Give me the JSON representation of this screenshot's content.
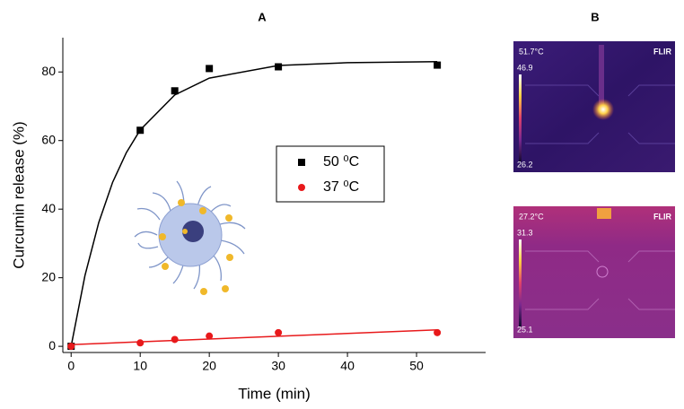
{
  "chart_data": {
    "type": "scatter",
    "title": "A",
    "xlabel": "Time (min)",
    "ylabel": "Curcumin release (%)",
    "xlim": [
      -1.2,
      60
    ],
    "xticks": [
      0,
      10,
      20,
      30,
      40,
      50
    ],
    "ylim": [
      -1.8,
      90
    ],
    "yticks": [
      0,
      20,
      40,
      60,
      80
    ],
    "series": [
      {
        "name": "50 ⁰C",
        "color": "#000000",
        "marker": "square",
        "x": [
          0,
          10,
          15,
          20,
          30,
          53
        ],
        "values": [
          0,
          63,
          74.5,
          81,
          81.5,
          82
        ],
        "fit": {
          "x": [
            0,
            2,
            4,
            6,
            8,
            10,
            15,
            20,
            30,
            40,
            53
          ],
          "values": [
            0,
            20.6,
            36.1,
            47.8,
            56.5,
            63.1,
            73.3,
            78.2,
            81.9,
            82.7,
            83
          ]
        }
      },
      {
        "name": "37 ⁰C",
        "color": "#e8191b",
        "marker": "circle",
        "x": [
          0,
          10,
          15,
          20,
          30,
          53
        ],
        "values": [
          0,
          1,
          2,
          3,
          4,
          4
        ],
        "fit": {
          "x": [
            0,
            53
          ],
          "values": [
            0.5,
            4.8
          ]
        }
      }
    ]
  },
  "panel_b": {
    "title": "B",
    "images": [
      {
        "spot": "51.7°C",
        "max": "46.9",
        "min": "26.2",
        "brand": "FLIR"
      },
      {
        "spot": "27.2°C",
        "max": "31.3",
        "min": "25.1",
        "brand": "FLIR"
      }
    ]
  }
}
